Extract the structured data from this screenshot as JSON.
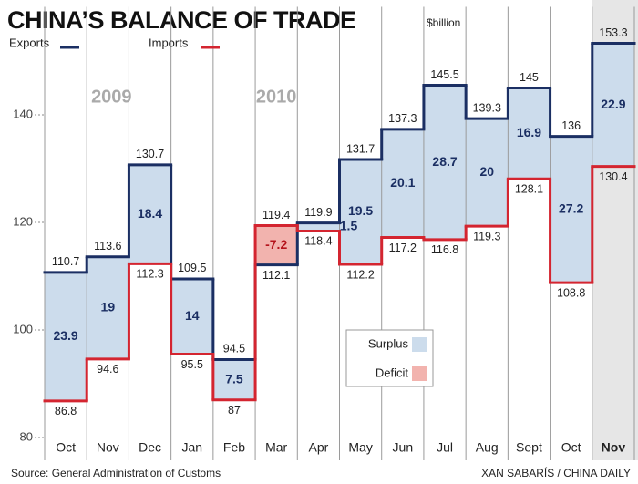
{
  "chart_data": {
    "type": "step",
    "title": "CHINA’S BALANCE OF TRADE",
    "unit": "$billion",
    "categories": [
      "Oct",
      "Nov",
      "Dec",
      "Jan",
      "Feb",
      "Mar",
      "Apr",
      "May",
      "Jun",
      "Jul",
      "Aug",
      "Sept",
      "Oct",
      "Nov"
    ],
    "series": [
      {
        "name": "Exports",
        "color": "#1b2f63",
        "values": [
          110.7,
          113.6,
          130.7,
          109.5,
          94.5,
          112.1,
          119.9,
          131.7,
          137.3,
          145.5,
          139.3,
          145,
          136,
          153.3
        ]
      },
      {
        "name": "Imports",
        "color": "#d42530",
        "values": [
          86.8,
          94.6,
          112.3,
          95.5,
          87,
          119.4,
          118.4,
          112.2,
          117.2,
          116.8,
          119.3,
          128.1,
          108.8,
          130.4
        ]
      }
    ],
    "balance": {
      "values": [
        23.9,
        19,
        18.4,
        14,
        7.5,
        -7.2,
        1.5,
        19.5,
        20.1,
        28.7,
        20,
        16.9,
        27.2,
        22.9
      ],
      "surplus": {
        "label": "Surplus",
        "color": "#ccdcec"
      },
      "deficit": {
        "label": "Deficit",
        "color": "#f2b3ae"
      }
    },
    "annotations": [
      "2009",
      "2010"
    ],
    "ylim": [
      80,
      155
    ],
    "yticks": [
      80,
      100,
      120,
      140
    ],
    "source": "Source: General Administration of Customs",
    "credit": "XAN SABARÍS / CHINA DAILY"
  }
}
